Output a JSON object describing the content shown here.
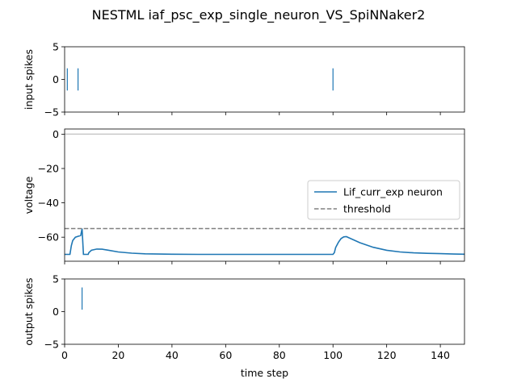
{
  "title": "NESTML iaf_psc_exp_single_neuron_VS_SpiNNaker2",
  "xlabel": "time step",
  "xlim": [
    0,
    149
  ],
  "xticks": [
    0,
    20,
    40,
    60,
    80,
    100,
    120,
    140
  ],
  "colors": {
    "series": "#1f77b4",
    "threshold": "#808080",
    "zero_line": "#c8c8c8"
  },
  "chart_data": [
    {
      "type": "scatter",
      "ylabel": "input spikes",
      "ylim": [
        -5,
        5
      ],
      "yticks": [
        -5,
        0,
        5
      ],
      "marker": "vertical-line",
      "x": [
        1,
        5,
        100
      ],
      "y": [
        0,
        0,
        0
      ]
    },
    {
      "type": "line",
      "ylabel": "voltage",
      "ylim": [
        -74,
        3
      ],
      "yticks": [
        0,
        -20,
        -40,
        -60
      ],
      "hline_zero": 0,
      "legend": {
        "placement": "center-right"
      },
      "series": [
        {
          "name": "Lif_curr_exp neuron",
          "x": [
            0,
            1,
            2,
            2.5,
            3,
            4,
            5,
            6,
            6.5,
            7,
            8,
            8.8,
            9,
            10,
            12,
            14,
            16,
            20,
            25,
            30,
            40,
            50,
            60,
            70,
            80,
            90,
            100,
            100.5,
            101,
            102,
            103,
            104,
            105,
            106,
            108,
            110,
            115,
            120,
            125,
            130,
            135,
            140,
            145,
            149
          ],
          "y": [
            -70,
            -70,
            -70,
            -65,
            -62,
            -60,
            -59.5,
            -59,
            -55,
            -70,
            -70,
            -70,
            -69,
            -67.6,
            -66.9,
            -67,
            -67.5,
            -68.6,
            -69.3,
            -69.7,
            -69.9,
            -70,
            -70,
            -70,
            -70,
            -70,
            -70,
            -69,
            -66,
            -63,
            -60.8,
            -59.8,
            -59.7,
            -60.4,
            -61.8,
            -63.2,
            -65.9,
            -67.6,
            -68.6,
            -69.1,
            -69.4,
            -69.6,
            -69.8,
            -69.9
          ]
        },
        {
          "name": "threshold",
          "style": "dashed",
          "x": [
            0,
            149
          ],
          "y": [
            -55,
            -55
          ]
        }
      ]
    },
    {
      "type": "scatter",
      "ylabel": "output spikes",
      "ylim": [
        -5,
        5
      ],
      "yticks": [
        -5,
        0,
        5
      ],
      "marker": "vertical-line",
      "x": [
        6.5
      ],
      "y": [
        2
      ]
    }
  ]
}
